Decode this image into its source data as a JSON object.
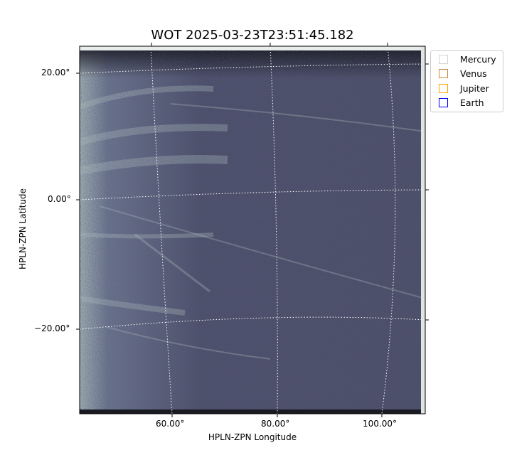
{
  "chart_data": {
    "type": "heatmap",
    "title": "WOT 2025-03-23T23:51:45.182",
    "xlabel": "HPLN-ZPN Longitude",
    "ylabel": "HPLN-ZPN Latitude",
    "x_ticks": [
      "60.00°",
      "80.00°",
      "100.00°"
    ],
    "y_ticks": [
      "20.00°",
      "0.00°",
      "−20.00°"
    ],
    "grid": true,
    "colormap": "bone",
    "legend_position": "outside-top-right",
    "legend": [
      {
        "name": "Mercury",
        "color": "#d3d3d3"
      },
      {
        "name": "Venus",
        "color": "#cd853f"
      },
      {
        "name": "Jupiter",
        "color": "#ffa500"
      },
      {
        "name": "Earth",
        "color": "#0000ff"
      }
    ]
  }
}
